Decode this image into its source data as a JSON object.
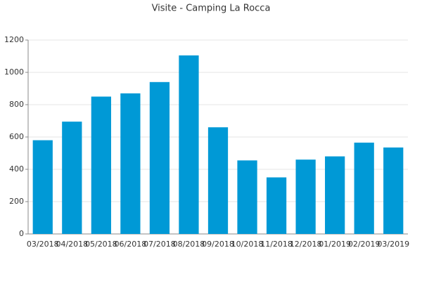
{
  "chart_data": {
    "type": "bar",
    "title": "Visite - Camping La Rocca",
    "categories": [
      "03/2018",
      "04/2018",
      "05/2018",
      "06/2018",
      "07/2018",
      "08/2018",
      "09/2018",
      "10/2018",
      "11/2018",
      "12/2018",
      "01/2019",
      "02/2019",
      "03/2019"
    ],
    "values": [
      580,
      695,
      850,
      870,
      940,
      1105,
      660,
      455,
      350,
      460,
      480,
      565,
      535
    ],
    "color": "#0099d6",
    "ylim": [
      0,
      1200
    ],
    "yticks": [
      0,
      200,
      400,
      600,
      800,
      1000,
      1200
    ],
    "grid": true
  }
}
